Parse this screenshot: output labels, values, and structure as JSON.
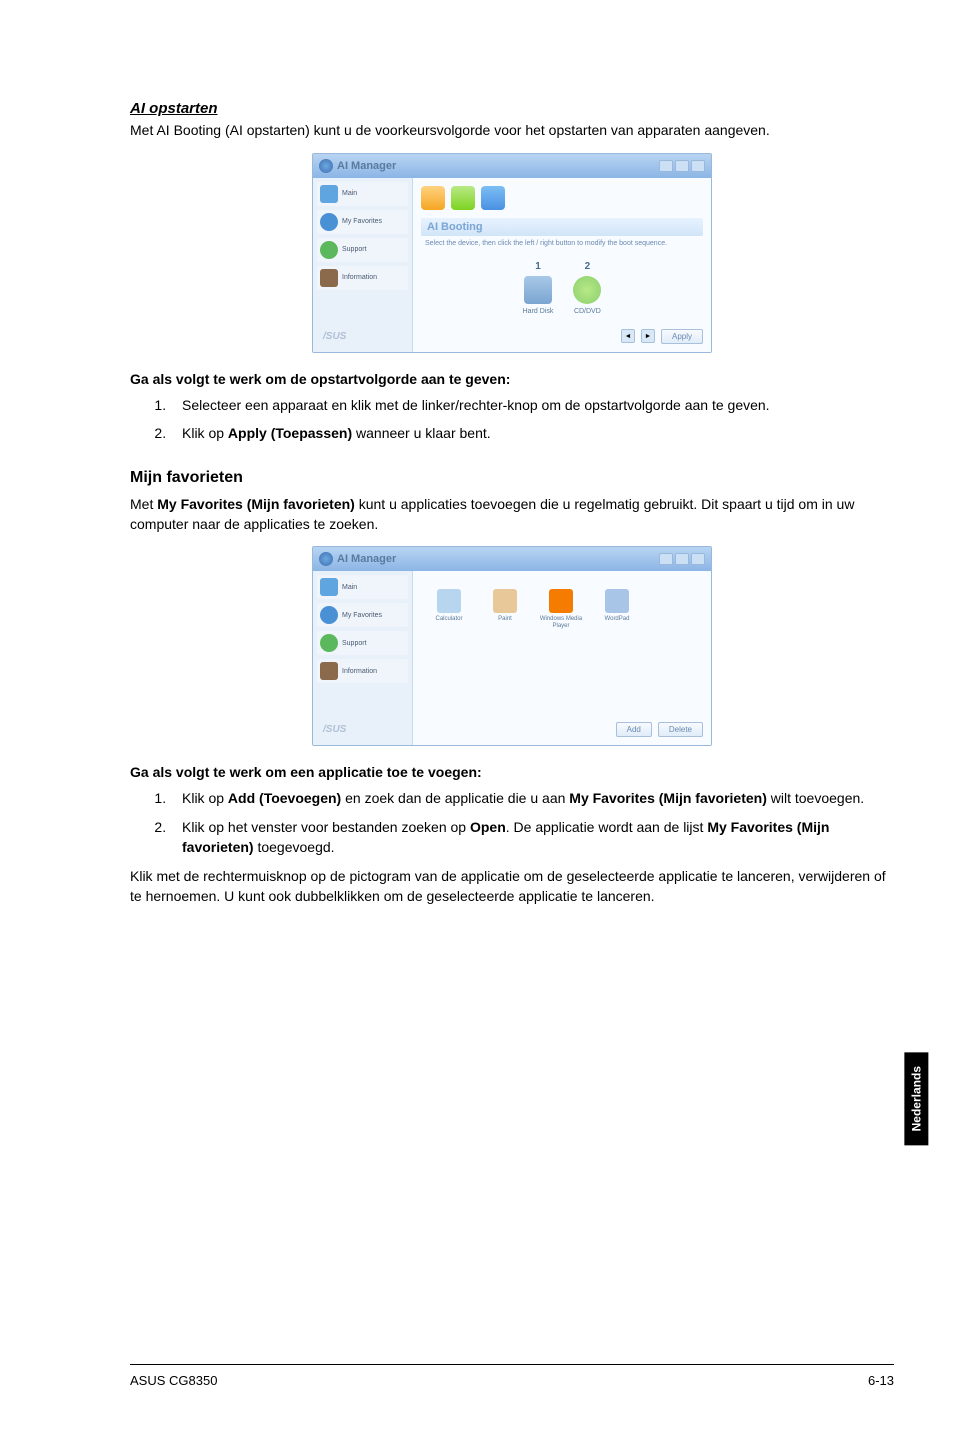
{
  "section1": {
    "title": "AI opstarten",
    "intro": "Met AI Booting (AI opstarten) kunt u de voorkeursvolgorde voor het opstarten van apparaten aangeven.",
    "instructions_title": "Ga als volgt te werk om de opstartvolgorde aan te geven:",
    "steps": [
      {
        "text_before": "Selecteer een apparaat en klik met de linker/rechter-knop om de opstartvolgorde aan te geven."
      },
      {
        "text_before": "Klik op ",
        "bold": "Apply (Toepassen)",
        "text_after": " wanneer u klaar bent."
      }
    ]
  },
  "screenshot1": {
    "window_title": "AI Manager",
    "sidebar": [
      {
        "label": "Main",
        "color": "#5fa5e0"
      },
      {
        "label": "My Favorites",
        "color": "#4a90d5"
      },
      {
        "label": "Support",
        "color": "#5cb85c"
      },
      {
        "label": "Information",
        "color": "#8a6a4a"
      }
    ],
    "brand": "/SUS",
    "top_icons": [
      {
        "color": "#f5a623"
      },
      {
        "color": "#7ed321"
      },
      {
        "color": "#4a90e2"
      }
    ],
    "panel_title": "AI Booting",
    "panel_desc": "Select the device, then click the left / right button to modify the boot sequence.",
    "boot_items": [
      {
        "num": "1",
        "label": "Hard Disk",
        "color": "#7aa5d0"
      },
      {
        "num": "2",
        "label": "CD/DVD",
        "color": "#8bcf6e"
      }
    ],
    "apply_btn": "Apply"
  },
  "section2": {
    "title": "Mijn favorieten",
    "intro_pre": "Met ",
    "intro_bold": "My Favorites (Mijn favorieten)",
    "intro_post": " kunt u applicaties toevoegen die u regelmatig gebruikt. Dit spaart u tijd om in uw computer naar de applicaties te zoeken."
  },
  "screenshot2": {
    "window_title": "AI Manager",
    "sidebar": [
      {
        "label": "Main",
        "color": "#5fa5e0"
      },
      {
        "label": "My Favorites",
        "color": "#4a90d5"
      },
      {
        "label": "Support",
        "color": "#5cb85c"
      },
      {
        "label": "Information",
        "color": "#8a6a4a"
      }
    ],
    "brand": "/SUS",
    "favorites": [
      {
        "label": "Calculator",
        "color": "#b8d5f0"
      },
      {
        "label": "Paint",
        "color": "#e8c898"
      },
      {
        "label": "Windows Media Player",
        "color": "#f57c00"
      },
      {
        "label": "WordPad",
        "color": "#a8c5e8"
      }
    ],
    "btn_add": "Add",
    "btn_delete": "Delete"
  },
  "section3": {
    "instructions_title": "Ga als volgt te werk om een applicatie toe te voegen:",
    "step1_pre": "Klik op ",
    "step1_bold1": "Add (Toevoegen)",
    "step1_mid": " en zoek dan de applicatie die u aan ",
    "step1_bold2": "My Favorites (Mijn favorieten)",
    "step1_post": " wilt toevoegen.",
    "step2_pre": "Klik op het venster voor bestanden zoeken op ",
    "step2_bold1": "Open",
    "step2_mid": ". De applicatie wordt aan de lijst ",
    "step2_bold2": "My Favorites (Mijn favorieten)",
    "step2_post": " toegevoegd.",
    "closing": "Klik met de rechtermuisknop op de pictogram van de applicatie om de geselecteerde applicatie te lanceren, verwijderen of te hernoemen. U kunt ook dubbelklikken om de geselecteerde applicatie te lanceren."
  },
  "side_label": "Nederlands",
  "footer": {
    "left": "ASUS CG8350",
    "right": "6-13"
  }
}
